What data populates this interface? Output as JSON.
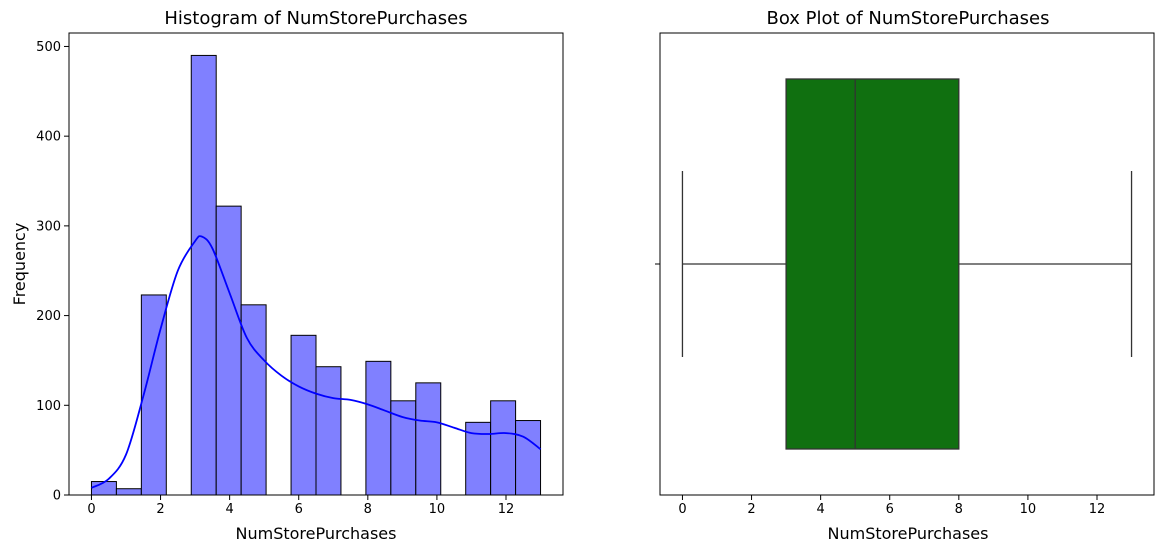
{
  "chart_data": [
    {
      "type": "bar",
      "subtype": "histogram_with_kde",
      "title": "Histogram of NumStorePurchases",
      "xlabel": "NumStorePurchases",
      "ylabel": "Frequency",
      "xlim": [
        -0.65,
        13.65
      ],
      "ylim": [
        0,
        515
      ],
      "xticks": [
        "0",
        "2",
        "4",
        "6",
        "8",
        "10",
        "12"
      ],
      "yticks": [
        "0",
        "100",
        "200",
        "300",
        "400",
        "500"
      ],
      "bin_width": 0.7222,
      "bins": [
        {
          "x0": 0.0,
          "value": 15
        },
        {
          "x0": 0.7222,
          "value": 7
        },
        {
          "x0": 1.4444,
          "value": 223
        },
        {
          "x0": 2.1667,
          "value": 0
        },
        {
          "x0": 2.8889,
          "value": 490
        },
        {
          "x0": 3.6111,
          "value": 322
        },
        {
          "x0": 4.3333,
          "value": 212
        },
        {
          "x0": 5.0556,
          "value": 0
        },
        {
          "x0": 5.7778,
          "value": 178
        },
        {
          "x0": 6.5,
          "value": 143
        },
        {
          "x0": 7.2222,
          "value": 0
        },
        {
          "x0": 7.9444,
          "value": 149
        },
        {
          "x0": 8.6667,
          "value": 105
        },
        {
          "x0": 9.3889,
          "value": 125
        },
        {
          "x0": 10.1111,
          "value": 0
        },
        {
          "x0": 10.8333,
          "value": 81
        },
        {
          "x0": 11.5556,
          "value": 105
        },
        {
          "x0": 12.2778,
          "value": 83
        }
      ],
      "kde": {
        "x": [
          0,
          0.5,
          1,
          1.5,
          2,
          2.5,
          3,
          3.2,
          3.5,
          4,
          4.5,
          5,
          5.5,
          6,
          6.5,
          7,
          7.5,
          8,
          8.5,
          9,
          9.5,
          10,
          10.5,
          11,
          11.5,
          12,
          12.5,
          13
        ],
        "y": [
          8,
          18,
          45,
          110,
          185,
          250,
          283,
          288,
          275,
          225,
          175,
          150,
          133,
          121,
          113,
          108,
          106,
          101,
          94,
          87,
          83,
          81,
          75,
          69,
          68,
          69,
          65,
          51
        ]
      },
      "colors": {
        "bar_fill": "#8080ff",
        "bar_edge": "#000000",
        "kde_line": "#0000ff"
      }
    },
    {
      "type": "box",
      "title": "Box Plot of NumStorePurchases",
      "xlabel": "NumStorePurchases",
      "xlim": [
        -0.65,
        13.65
      ],
      "xticks": [
        "0",
        "2",
        "4",
        "6",
        "8",
        "10",
        "12"
      ],
      "whisker_low": 0,
      "q1": 3,
      "median": 5,
      "q3": 8,
      "whisker_high": 13,
      "colors": {
        "box_fill": "#107010",
        "line": "#333333"
      }
    }
  ]
}
